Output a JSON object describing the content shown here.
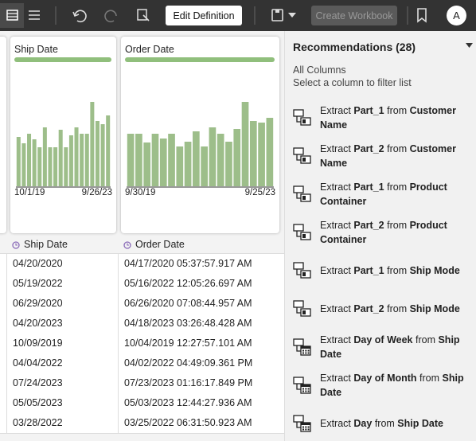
{
  "toolbar": {
    "edit_button": "Edit Definition",
    "create_button": "Create Workbook",
    "avatar": "A"
  },
  "columns": [
    {
      "name": "Ship Date",
      "histogram": [
        62,
        54,
        66,
        59,
        49,
        74,
        49,
        49,
        71,
        49,
        64,
        74,
        66,
        66,
        106,
        82,
        78,
        89
      ],
      "axis_start": "10/1/19",
      "axis_end": "9/26/23"
    },
    {
      "name": "Order Date",
      "histogram": [
        66,
        66,
        55,
        66,
        60,
        66,
        50,
        56,
        69,
        50,
        74,
        66,
        56,
        72,
        106,
        82,
        80,
        86
      ],
      "axis_start": "9/30/19",
      "axis_end": "9/25/23"
    }
  ],
  "table": {
    "headers": [
      "Ship Date",
      "Order Date"
    ],
    "rows": [
      [
        "04/20/2020",
        "04/17/2020 05:37:57.917 AM"
      ],
      [
        "05/19/2022",
        "05/16/2022 12:05:26.697 AM"
      ],
      [
        "06/29/2020",
        "06/26/2020 07:08:44.957 AM"
      ],
      [
        "04/20/2023",
        "04/18/2023 03:26:48.428 AM"
      ],
      [
        "10/09/2019",
        "10/04/2019 12:27:57.101 AM"
      ],
      [
        "04/04/2022",
        "04/02/2022 04:49:09.361 PM"
      ],
      [
        "07/24/2023",
        "07/23/2023 01:16:17.849 PM"
      ],
      [
        "05/05/2023",
        "05/03/2023 12:44:27.936 AM"
      ],
      [
        "03/28/2022",
        "03/25/2022 06:31:50.923 AM"
      ]
    ]
  },
  "recommendations": {
    "title": "Recommendations (28)",
    "scope": "All Columns",
    "hint": "Select a column to filter list",
    "items": [
      {
        "verb": "Extract",
        "part": "Part_1",
        "from": "from",
        "column": "Customer Name",
        "icon": "split"
      },
      {
        "verb": "Extract",
        "part": "Part_2",
        "from": "from",
        "column": "Customer Name",
        "icon": "split"
      },
      {
        "verb": "Extract",
        "part": "Part_1",
        "from": "from",
        "column": "Product Container",
        "icon": "split"
      },
      {
        "verb": "Extract",
        "part": "Part_2",
        "from": "from",
        "column": "Product Container",
        "icon": "split"
      },
      {
        "verb": "Extract",
        "part": "Part_1",
        "from": "from",
        "column": "Ship Mode",
        "icon": "split"
      },
      {
        "verb": "Extract",
        "part": "Part_2",
        "from": "from",
        "column": "Ship Mode",
        "icon": "split"
      },
      {
        "verb": "Extract",
        "part": "Day of Week",
        "from": "from",
        "column": "Ship Date",
        "icon": "date"
      },
      {
        "verb": "Extract",
        "part": "Day of Month",
        "from": "from",
        "column": "Ship Date",
        "icon": "date"
      },
      {
        "verb": "Extract",
        "part": "Day",
        "from": "from",
        "column": "Ship Date",
        "icon": "date"
      }
    ]
  }
}
